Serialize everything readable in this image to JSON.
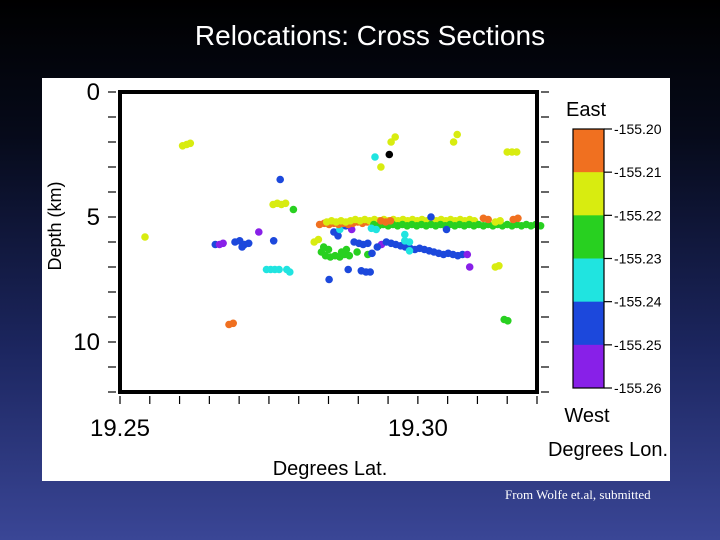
{
  "slide": {
    "title": "Relocations: Cross Sections",
    "citation": "From Wolfe et.al, submitted"
  },
  "chart_data": {
    "type": "scatter",
    "xlabel": "Degrees Lat.",
    "ylabel": "Depth (km)",
    "xlim": [
      19.25,
      19.32
    ],
    "ylim": [
      12,
      0
    ],
    "x_ticks": [
      19.25,
      19.3
    ],
    "y_ticks": [
      0,
      5,
      10
    ],
    "grid": false,
    "colorbar": {
      "top_label": "East",
      "bottom_label": "West",
      "axis_label": "Degrees Lon.",
      "ticks": [
        "-155.20",
        "-155.21",
        "-155.22",
        "-155.23",
        "-155.24",
        "-155.25",
        "-155.26"
      ],
      "colors": [
        "#f07020",
        "#d8ec10",
        "#28d020",
        "#20e4e0",
        "#1c48dc",
        "#8820e8"
      ]
    },
    "point_colors": {
      "orange": "#f07020",
      "yellow": "#d8ec10",
      "green": "#28d020",
      "cyan": "#20e4e0",
      "blue": "#1c48dc",
      "purple": "#8820e8",
      "black": "#000000"
    },
    "points": [
      [
        19.2612,
        2.1,
        "yellow"
      ],
      [
        19.2618,
        2.05,
        "yellow"
      ],
      [
        19.2605,
        2.15,
        "yellow"
      ],
      [
        19.2542,
        5.8,
        "yellow"
      ],
      [
        19.2683,
        9.3,
        "orange"
      ],
      [
        19.269,
        9.25,
        "orange"
      ],
      [
        19.266,
        6.1,
        "blue"
      ],
      [
        19.2667,
        6.1,
        "purple"
      ],
      [
        19.2673,
        6.05,
        "purple"
      ],
      [
        19.2693,
        6.0,
        "blue"
      ],
      [
        19.2701,
        5.95,
        "blue"
      ],
      [
        19.2709,
        6.1,
        "blue"
      ],
      [
        19.2716,
        6.05,
        "blue"
      ],
      [
        19.2705,
        6.2,
        "blue"
      ],
      [
        19.2733,
        5.6,
        "purple"
      ],
      [
        19.2746,
        7.1,
        "cyan"
      ],
      [
        19.2753,
        7.1,
        "cyan"
      ],
      [
        19.276,
        7.1,
        "cyan"
      ],
      [
        19.2767,
        7.1,
        "cyan"
      ],
      [
        19.2758,
        5.95,
        "blue"
      ],
      [
        19.278,
        7.1,
        "cyan"
      ],
      [
        19.2785,
        7.2,
        "cyan"
      ],
      [
        19.2757,
        4.5,
        "yellow"
      ],
      [
        19.2764,
        4.45,
        "yellow"
      ],
      [
        19.2771,
        4.5,
        "yellow"
      ],
      [
        19.2778,
        4.45,
        "yellow"
      ],
      [
        19.2769,
        3.5,
        "blue"
      ],
      [
        19.2791,
        4.7,
        "green"
      ],
      [
        19.2826,
        6.0,
        "yellow"
      ],
      [
        19.2833,
        5.9,
        "yellow"
      ],
      [
        19.2838,
        6.4,
        "green"
      ],
      [
        19.2845,
        6.55,
        "green"
      ],
      [
        19.2853,
        6.6,
        "green"
      ],
      [
        19.2861,
        6.55,
        "green"
      ],
      [
        19.2869,
        6.6,
        "green"
      ],
      [
        19.2877,
        6.5,
        "green"
      ],
      [
        19.2885,
        6.55,
        "green"
      ],
      [
        19.2842,
        6.2,
        "green"
      ],
      [
        19.285,
        6.3,
        "green"
      ],
      [
        19.2851,
        7.5,
        "blue"
      ],
      [
        19.2859,
        5.6,
        "blue"
      ],
      [
        19.2866,
        5.75,
        "blue"
      ],
      [
        19.2869,
        5.5,
        "cyan"
      ],
      [
        19.2879,
        5.35,
        "blue"
      ],
      [
        19.2889,
        5.5,
        "purple"
      ],
      [
        19.2883,
        7.1,
        "blue"
      ],
      [
        19.2905,
        7.15,
        "blue"
      ],
      [
        19.2913,
        7.2,
        "blue"
      ],
      [
        19.292,
        7.2,
        "blue"
      ],
      [
        19.2893,
        6.0,
        "blue"
      ],
      [
        19.2901,
        6.05,
        "blue"
      ],
      [
        19.2908,
        6.1,
        "blue"
      ],
      [
        19.2916,
        6.05,
        "blue"
      ],
      [
        19.2916,
        6.5,
        "green"
      ],
      [
        19.2923,
        6.45,
        "blue"
      ],
      [
        19.2939,
        6.1,
        "purple"
      ],
      [
        19.288,
        6.3,
        "green"
      ],
      [
        19.2872,
        6.4,
        "green"
      ],
      [
        19.2898,
        6.4,
        "green"
      ],
      [
        19.2932,
        6.2,
        "blue"
      ],
      [
        19.2835,
        5.3,
        "orange"
      ],
      [
        19.2843,
        5.25,
        "orange"
      ],
      [
        19.2851,
        5.3,
        "orange"
      ],
      [
        19.2859,
        5.25,
        "orange"
      ],
      [
        19.2867,
        5.3,
        "orange"
      ],
      [
        19.2875,
        5.25,
        "orange"
      ],
      [
        19.2883,
        5.3,
        "orange"
      ],
      [
        19.2891,
        5.25,
        "orange"
      ],
      [
        19.2899,
        5.2,
        "orange"
      ],
      [
        19.2907,
        5.25,
        "orange"
      ],
      [
        19.2915,
        5.2,
        "orange"
      ],
      [
        19.2847,
        5.2,
        "yellow"
      ],
      [
        19.2855,
        5.15,
        "yellow"
      ],
      [
        19.2863,
        5.2,
        "yellow"
      ],
      [
        19.2871,
        5.15,
        "yellow"
      ],
      [
        19.2879,
        5.2,
        "yellow"
      ],
      [
        19.2887,
        5.15,
        "yellow"
      ],
      [
        19.2895,
        5.1,
        "yellow"
      ],
      [
        19.2903,
        5.15,
        "yellow"
      ],
      [
        19.2911,
        5.1,
        "yellow"
      ],
      [
        19.2919,
        5.15,
        "yellow"
      ],
      [
        19.2927,
        5.1,
        "yellow"
      ],
      [
        19.2935,
        5.15,
        "yellow"
      ],
      [
        19.2943,
        5.1,
        "yellow"
      ],
      [
        19.2951,
        5.15,
        "yellow"
      ],
      [
        19.2959,
        5.1,
        "yellow"
      ],
      [
        19.2967,
        5.15,
        "yellow"
      ],
      [
        19.2975,
        5.1,
        "yellow"
      ],
      [
        19.2983,
        5.15,
        "yellow"
      ],
      [
        19.2991,
        5.1,
        "yellow"
      ],
      [
        19.2999,
        5.15,
        "yellow"
      ],
      [
        19.3007,
        5.1,
        "yellow"
      ],
      [
        19.3015,
        5.15,
        "yellow"
      ],
      [
        19.3023,
        5.1,
        "yellow"
      ],
      [
        19.3031,
        5.15,
        "yellow"
      ],
      [
        19.3039,
        5.1,
        "yellow"
      ],
      [
        19.3047,
        5.15,
        "yellow"
      ],
      [
        19.3055,
        5.1,
        "yellow"
      ],
      [
        19.3063,
        5.15,
        "yellow"
      ],
      [
        19.3071,
        5.1,
        "yellow"
      ],
      [
        19.3079,
        5.15,
        "yellow"
      ],
      [
        19.3087,
        5.1,
        "yellow"
      ],
      [
        19.3095,
        5.15,
        "yellow"
      ],
      [
        19.2926,
        5.3,
        "green"
      ],
      [
        19.2934,
        5.35,
        "green"
      ],
      [
        19.2942,
        5.3,
        "green"
      ],
      [
        19.295,
        5.35,
        "green"
      ],
      [
        19.2958,
        5.3,
        "green"
      ],
      [
        19.2966,
        5.35,
        "green"
      ],
      [
        19.2974,
        5.3,
        "green"
      ],
      [
        19.2982,
        5.35,
        "green"
      ],
      [
        19.299,
        5.3,
        "green"
      ],
      [
        19.2998,
        5.35,
        "green"
      ],
      [
        19.3006,
        5.3,
        "green"
      ],
      [
        19.3014,
        5.35,
        "green"
      ],
      [
        19.3022,
        5.3,
        "green"
      ],
      [
        19.303,
        5.35,
        "green"
      ],
      [
        19.3038,
        5.3,
        "green"
      ],
      [
        19.3046,
        5.35,
        "green"
      ],
      [
        19.3054,
        5.3,
        "green"
      ],
      [
        19.3062,
        5.35,
        "green"
      ],
      [
        19.307,
        5.3,
        "green"
      ],
      [
        19.3078,
        5.35,
        "green"
      ],
      [
        19.3086,
        5.3,
        "green"
      ],
      [
        19.3094,
        5.35,
        "green"
      ],
      [
        19.3102,
        5.3,
        "green"
      ],
      [
        19.311,
        5.35,
        "green"
      ],
      [
        19.3118,
        5.3,
        "green"
      ],
      [
        19.3126,
        5.35,
        "green"
      ],
      [
        19.3134,
        5.3,
        "green"
      ],
      [
        19.3142,
        5.35,
        "green"
      ],
      [
        19.315,
        5.3,
        "green"
      ],
      [
        19.3158,
        5.35,
        "green"
      ],
      [
        19.3166,
        5.3,
        "green"
      ],
      [
        19.3174,
        5.35,
        "green"
      ],
      [
        19.3182,
        5.3,
        "green"
      ],
      [
        19.319,
        5.35,
        "green"
      ],
      [
        19.3198,
        5.3,
        "green"
      ],
      [
        19.3206,
        5.35,
        "green"
      ],
      [
        19.2922,
        5.45,
        "cyan"
      ],
      [
        19.293,
        5.5,
        "cyan"
      ],
      [
        19.3022,
        5.0,
        "blue"
      ],
      [
        19.3048,
        5.5,
        "blue"
      ],
      [
        19.2938,
        5.15,
        "orange"
      ],
      [
        19.2946,
        5.2,
        "orange"
      ],
      [
        19.2954,
        5.15,
        "orange"
      ],
      [
        19.311,
        5.05,
        "orange"
      ],
      [
        19.3118,
        5.1,
        "orange"
      ],
      [
        19.316,
        5.1,
        "orange"
      ],
      [
        19.3168,
        5.05,
        "orange"
      ],
      [
        19.313,
        5.2,
        "yellow"
      ],
      [
        19.3138,
        5.15,
        "yellow"
      ],
      [
        19.2947,
        6.0,
        "blue"
      ],
      [
        19.2955,
        6.05,
        "blue"
      ],
      [
        19.2963,
        6.1,
        "blue"
      ],
      [
        19.2971,
        6.15,
        "blue"
      ],
      [
        19.2979,
        6.2,
        "blue"
      ],
      [
        19.2987,
        6.25,
        "blue"
      ],
      [
        19.2995,
        6.3,
        "blue"
      ],
      [
        19.3003,
        6.25,
        "blue"
      ],
      [
        19.3011,
        6.3,
        "blue"
      ],
      [
        19.3019,
        6.35,
        "blue"
      ],
      [
        19.3027,
        6.4,
        "blue"
      ],
      [
        19.3035,
        6.45,
        "blue"
      ],
      [
        19.3043,
        6.5,
        "blue"
      ],
      [
        19.3051,
        6.45,
        "blue"
      ],
      [
        19.3059,
        6.5,
        "blue"
      ],
      [
        19.3067,
        6.55,
        "blue"
      ],
      [
        19.3075,
        6.5,
        "blue"
      ],
      [
        19.3083,
        6.5,
        "purple"
      ],
      [
        19.3087,
        7.0,
        "purple"
      ],
      [
        19.2978,
        5.95,
        "cyan"
      ],
      [
        19.2986,
        6.0,
        "cyan"
      ],
      [
        19.2978,
        5.7,
        "cyan"
      ],
      [
        19.2986,
        6.35,
        "cyan"
      ],
      [
        19.313,
        7.0,
        "yellow"
      ],
      [
        19.3136,
        6.95,
        "yellow"
      ],
      [
        19.3145,
        9.1,
        "green"
      ],
      [
        19.3151,
        9.15,
        "green"
      ],
      [
        19.2928,
        2.6,
        "cyan"
      ],
      [
        19.2952,
        2.5,
        "black"
      ],
      [
        19.2938,
        3.0,
        "yellow"
      ],
      [
        19.2955,
        2.0,
        "yellow"
      ],
      [
        19.2962,
        1.8,
        "yellow"
      ],
      [
        19.3066,
        1.7,
        "yellow"
      ],
      [
        19.306,
        2.0,
        "yellow"
      ],
      [
        19.315,
        2.4,
        "yellow"
      ],
      [
        19.3158,
        2.4,
        "yellow"
      ],
      [
        19.3166,
        2.4,
        "yellow"
      ]
    ]
  }
}
